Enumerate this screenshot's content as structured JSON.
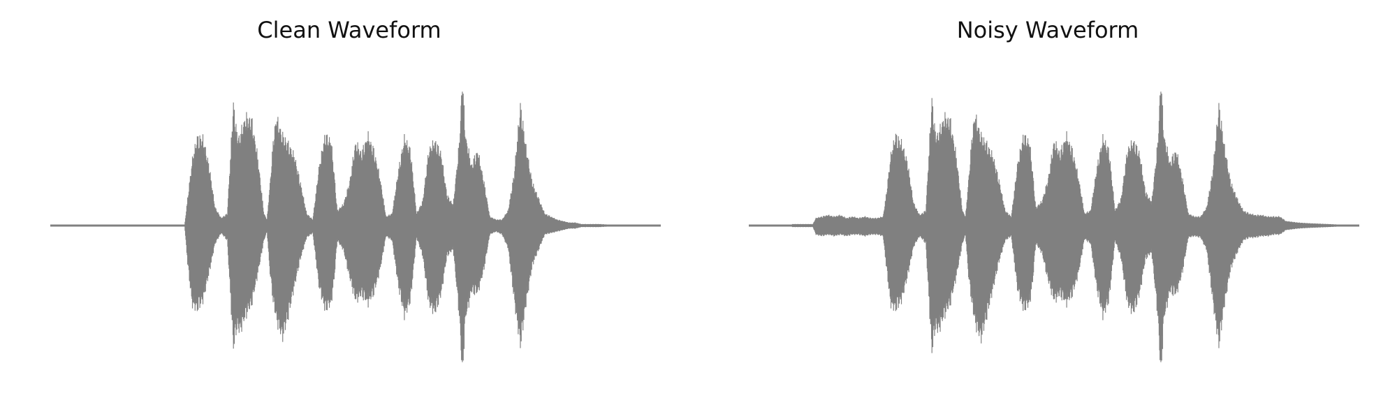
{
  "chart_data": [
    {
      "type": "line",
      "title": "Clean Waveform",
      "xlabel": "",
      "ylabel": "",
      "axes_visible": false,
      "grid": false,
      "color": "#808080",
      "x_range": [
        0,
        1
      ],
      "ylim": [
        -1.0,
        1.0
      ],
      "envelope": {
        "x": [
          0.0,
          0.22,
          0.225,
          0.232,
          0.24,
          0.25,
          0.26,
          0.27,
          0.28,
          0.29,
          0.3,
          0.305,
          0.31,
          0.315,
          0.32,
          0.33,
          0.34,
          0.35,
          0.355,
          0.36,
          0.365,
          0.37,
          0.38,
          0.39,
          0.4,
          0.41,
          0.42,
          0.43,
          0.44,
          0.45,
          0.46,
          0.465,
          0.47,
          0.48,
          0.49,
          0.5,
          0.51,
          0.52,
          0.53,
          0.54,
          0.55,
          0.56,
          0.57,
          0.58,
          0.59,
          0.6,
          0.61,
          0.62,
          0.63,
          0.64,
          0.65,
          0.66,
          0.67,
          0.675,
          0.68,
          0.69,
          0.7,
          0.71,
          0.72,
          0.73,
          0.74,
          0.75,
          0.76,
          0.77,
          0.78,
          0.79,
          0.8,
          0.81,
          0.82,
          0.83,
          0.84,
          0.85,
          0.86,
          0.87,
          0.88,
          0.9,
          0.92,
          0.95,
          1.0
        ],
        "upper": [
          0.0,
          0.0,
          0.18,
          0.42,
          0.58,
          0.58,
          0.4,
          0.12,
          0.05,
          0.08,
          0.82,
          0.62,
          0.58,
          0.66,
          0.72,
          0.7,
          0.45,
          0.08,
          0.04,
          0.28,
          0.55,
          0.72,
          0.6,
          0.54,
          0.46,
          0.28,
          0.08,
          0.04,
          0.38,
          0.6,
          0.56,
          0.35,
          0.1,
          0.14,
          0.28,
          0.55,
          0.48,
          0.6,
          0.5,
          0.32,
          0.06,
          0.08,
          0.36,
          0.58,
          0.5,
          0.08,
          0.16,
          0.5,
          0.56,
          0.48,
          0.2,
          0.14,
          0.55,
          0.98,
          0.6,
          0.4,
          0.5,
          0.3,
          0.06,
          0.04,
          0.04,
          0.1,
          0.35,
          0.8,
          0.5,
          0.28,
          0.18,
          0.08,
          0.06,
          0.04,
          0.03,
          0.02,
          0.02,
          0.01,
          0.01,
          0.01,
          0.005,
          0.003,
          0.0
        ],
        "lower": [
          0.0,
          0.0,
          -0.25,
          -0.52,
          -0.56,
          -0.5,
          -0.32,
          -0.12,
          -0.05,
          -0.1,
          -0.82,
          -0.68,
          -0.7,
          -0.66,
          -0.6,
          -0.52,
          -0.32,
          -0.1,
          -0.04,
          -0.32,
          -0.5,
          -0.62,
          -0.75,
          -0.6,
          -0.4,
          -0.22,
          -0.08,
          -0.05,
          -0.4,
          -0.56,
          -0.52,
          -0.36,
          -0.1,
          -0.16,
          -0.34,
          -0.5,
          -0.46,
          -0.52,
          -0.45,
          -0.3,
          -0.07,
          -0.1,
          -0.4,
          -0.6,
          -0.5,
          -0.08,
          -0.2,
          -0.52,
          -0.58,
          -0.46,
          -0.2,
          -0.16,
          -0.6,
          -1.0,
          -0.62,
          -0.44,
          -0.45,
          -0.3,
          -0.06,
          -0.04,
          -0.06,
          -0.15,
          -0.5,
          -0.8,
          -0.5,
          -0.26,
          -0.16,
          -0.06,
          -0.05,
          -0.04,
          -0.03,
          -0.02,
          -0.02,
          -0.01,
          -0.01,
          -0.01,
          -0.005,
          -0.003,
          0.0
        ]
      }
    },
    {
      "type": "line",
      "title": "Noisy Waveform",
      "xlabel": "",
      "ylabel": "",
      "axes_visible": false,
      "grid": false,
      "color": "#808080",
      "x_range": [
        0,
        1
      ],
      "ylim": [
        -1.0,
        1.0
      ],
      "envelope": {
        "x": [
          0.0,
          0.07,
          0.071,
          0.105,
          0.11,
          0.12,
          0.13,
          0.14,
          0.15,
          0.16,
          0.17,
          0.18,
          0.19,
          0.2,
          0.21,
          0.22,
          0.225,
          0.232,
          0.24,
          0.25,
          0.26,
          0.27,
          0.28,
          0.29,
          0.3,
          0.305,
          0.31,
          0.315,
          0.32,
          0.33,
          0.34,
          0.35,
          0.355,
          0.36,
          0.365,
          0.37,
          0.38,
          0.39,
          0.4,
          0.41,
          0.42,
          0.43,
          0.44,
          0.45,
          0.46,
          0.465,
          0.47,
          0.48,
          0.49,
          0.5,
          0.51,
          0.52,
          0.53,
          0.54,
          0.55,
          0.56,
          0.57,
          0.58,
          0.59,
          0.6,
          0.61,
          0.62,
          0.63,
          0.64,
          0.65,
          0.66,
          0.67,
          0.675,
          0.68,
          0.69,
          0.7,
          0.71,
          0.72,
          0.73,
          0.74,
          0.75,
          0.76,
          0.77,
          0.78,
          0.79,
          0.8,
          0.81,
          0.82,
          0.83,
          0.84,
          0.85,
          0.86,
          0.87,
          0.88,
          0.9,
          0.92,
          0.95,
          1.0
        ],
        "upper": [
          0.0,
          0.0,
          0.01,
          0.01,
          0.05,
          0.06,
          0.07,
          0.06,
          0.07,
          0.05,
          0.06,
          0.05,
          0.06,
          0.05,
          0.05,
          0.06,
          0.2,
          0.45,
          0.6,
          0.55,
          0.42,
          0.15,
          0.07,
          0.1,
          0.85,
          0.62,
          0.6,
          0.66,
          0.72,
          0.7,
          0.46,
          0.1,
          0.06,
          0.3,
          0.56,
          0.74,
          0.6,
          0.54,
          0.46,
          0.3,
          0.1,
          0.06,
          0.4,
          0.6,
          0.55,
          0.36,
          0.12,
          0.16,
          0.3,
          0.56,
          0.48,
          0.6,
          0.5,
          0.32,
          0.08,
          0.1,
          0.38,
          0.58,
          0.5,
          0.1,
          0.18,
          0.5,
          0.56,
          0.48,
          0.22,
          0.16,
          0.55,
          0.98,
          0.6,
          0.42,
          0.5,
          0.32,
          0.08,
          0.06,
          0.06,
          0.12,
          0.36,
          0.8,
          0.5,
          0.28,
          0.18,
          0.1,
          0.08,
          0.07,
          0.07,
          0.06,
          0.06,
          0.06,
          0.03,
          0.02,
          0.015,
          0.01,
          0.0
        ],
        "lower": [
          0.0,
          0.0,
          -0.01,
          -0.01,
          -0.06,
          -0.07,
          -0.06,
          -0.07,
          -0.06,
          -0.07,
          -0.06,
          -0.06,
          -0.07,
          -0.06,
          -0.06,
          -0.07,
          -0.26,
          -0.52,
          -0.56,
          -0.5,
          -0.34,
          -0.14,
          -0.07,
          -0.12,
          -0.85,
          -0.68,
          -0.7,
          -0.66,
          -0.6,
          -0.52,
          -0.34,
          -0.12,
          -0.06,
          -0.34,
          -0.5,
          -0.64,
          -0.76,
          -0.6,
          -0.42,
          -0.24,
          -0.1,
          -0.07,
          -0.42,
          -0.56,
          -0.52,
          -0.38,
          -0.12,
          -0.18,
          -0.36,
          -0.5,
          -0.46,
          -0.52,
          -0.46,
          -0.32,
          -0.09,
          -0.12,
          -0.42,
          -0.6,
          -0.5,
          -0.1,
          -0.22,
          -0.52,
          -0.58,
          -0.46,
          -0.22,
          -0.18,
          -0.6,
          -1.0,
          -0.62,
          -0.44,
          -0.46,
          -0.32,
          -0.08,
          -0.07,
          -0.08,
          -0.16,
          -0.5,
          -0.8,
          -0.5,
          -0.28,
          -0.18,
          -0.1,
          -0.08,
          -0.08,
          -0.07,
          -0.07,
          -0.06,
          -0.06,
          -0.03,
          -0.02,
          -0.015,
          -0.01,
          0.0
        ]
      }
    }
  ]
}
